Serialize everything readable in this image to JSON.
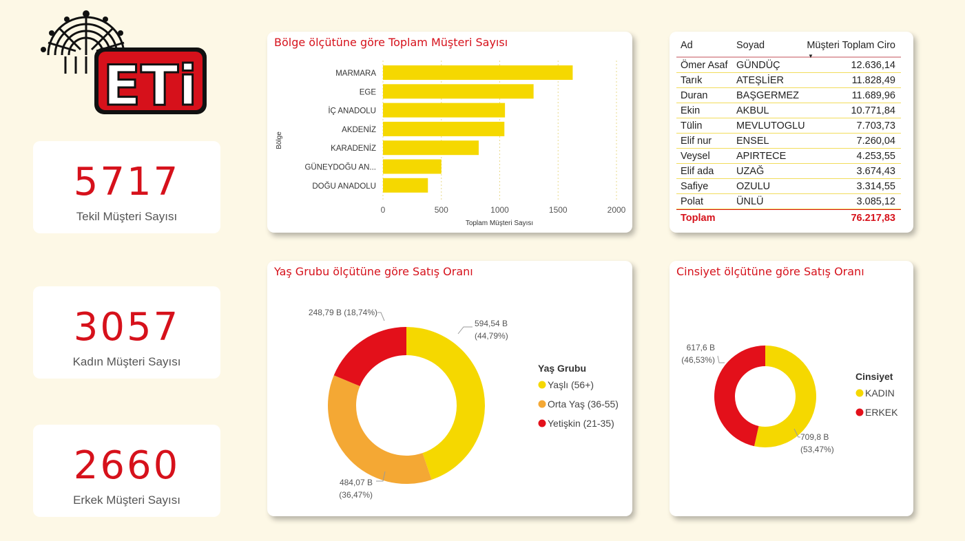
{
  "logo": {
    "text": "ETi",
    "colors": {
      "red": "#d6111b",
      "black": "#111111"
    }
  },
  "kpis": [
    {
      "value": "5717",
      "label": "Tekil Müşteri Sayısı"
    },
    {
      "value": "3057",
      "label": "Kadın Müşteri Sayısı"
    },
    {
      "value": "2660",
      "label": "Erkek Müşteri Sayısı"
    }
  ],
  "region_chart": {
    "title": "Bölge ölçütüne göre Toplam Müşteri Sayısı",
    "chart_data": {
      "type": "bar",
      "orientation": "horizontal",
      "categories": [
        "MARMARA",
        "EGE",
        "İÇ ANADOLU",
        "AKDENİZ",
        "KARADENİZ",
        "GÜNEYDOĞU AN...",
        "DOĞU ANADOLU"
      ],
      "values": [
        1625,
        1290,
        1045,
        1040,
        820,
        500,
        385
      ],
      "xlabel": "Toplam Müşteri Sayısı",
      "ylabel": "Bölge",
      "xticks": [
        "0",
        "500",
        "1000",
        "1500",
        "2000"
      ],
      "xlim": [
        0,
        2000
      ],
      "grid": true,
      "color": "#f5d800"
    }
  },
  "customer_table": {
    "headers": [
      "Ad",
      "Soyad",
      "Müşteri Toplam Ciro"
    ],
    "rows": [
      [
        "Ömer Asaf",
        "GÜNDÜÇ",
        "12.636,14"
      ],
      [
        "Tarık",
        "ATEŞLİER",
        "11.828,49"
      ],
      [
        "Duran",
        "BAŞGERMEZ",
        "11.689,96"
      ],
      [
        "Ekin",
        "AKBUL",
        "10.771,84"
      ],
      [
        "Tülin",
        "MEVLUTOGLU",
        "7.703,73"
      ],
      [
        "Elif nur",
        "ENSEL",
        "7.260,04"
      ],
      [
        "Veysel",
        "APIRTECE",
        "4.253,55"
      ],
      [
        "Elif ada",
        "UZAĞ",
        "3.674,43"
      ],
      [
        "Safiye",
        "OZULU",
        "3.314,55"
      ],
      [
        "Polat",
        "ÜNLÜ",
        "3.085,12"
      ]
    ],
    "total_label": "Toplam",
    "total_value": "76.217,83"
  },
  "age_chart": {
    "title": "Yaş Grubu ölçütüne göre Satış Oranı",
    "legend_title": "Yaş Grubu",
    "chart_data": {
      "type": "pie",
      "donut": true,
      "labels": [
        "Yaşlı (56+)",
        "Orta Yaş (36-55)",
        "Yetişkin (21-35)"
      ],
      "values": [
        44.79,
        36.47,
        18.74
      ],
      "value_labels": [
        "594,54 B",
        "484,07 B",
        "248,79 B"
      ],
      "pct_labels": [
        "(44,79%)",
        "(36,47%)",
        "(18,74%)"
      ],
      "colors": [
        "#f5d800",
        "#f4a834",
        "#e3101a"
      ]
    }
  },
  "gender_chart": {
    "title": "Cinsiyet ölçütüne göre Satış Oranı",
    "legend_title": "Cinsiyet",
    "chart_data": {
      "type": "pie",
      "donut": true,
      "labels": [
        "KADIN",
        "ERKEK"
      ],
      "values": [
        53.47,
        46.53
      ],
      "value_labels": [
        "709,8 B",
        "617,6 B"
      ],
      "pct_labels": [
        "(53,47%)",
        "(46,53%)"
      ],
      "colors": [
        "#f5d800",
        "#e3101a"
      ]
    }
  }
}
